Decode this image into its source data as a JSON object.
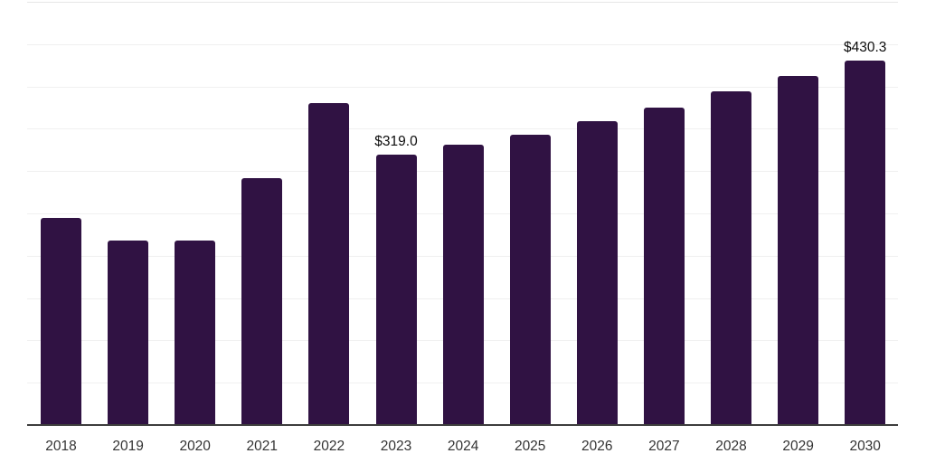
{
  "chart_data": {
    "type": "bar",
    "title": "",
    "xlabel": "",
    "ylabel": "",
    "categories": [
      "2018",
      "2019",
      "2020",
      "2021",
      "2022",
      "2023",
      "2024",
      "2025",
      "2026",
      "2027",
      "2028",
      "2029",
      "2030"
    ],
    "values": [
      244.6,
      217.9,
      218.4,
      291.8,
      380.1,
      319.0,
      331.2,
      342.9,
      358.9,
      374.8,
      394.0,
      412.1,
      430.3
    ],
    "data_labels": [
      {
        "category": "2023",
        "text": "$319.0"
      },
      {
        "category": "2030",
        "text": "$430.3"
      }
    ],
    "ylim": [
      0,
      500
    ],
    "gridline_step": 50,
    "grid": "horizontal-only",
    "legend": "none",
    "y_axis_labels_visible": false,
    "colors": {
      "bar": "#301243",
      "axis_line": "#3d3d3d",
      "gridline": "#f0f0f0",
      "gridline_top": "#e7e7e7",
      "tick_label": "#333333",
      "data_label": "#0d0d0d",
      "background": "#ffffff"
    }
  }
}
